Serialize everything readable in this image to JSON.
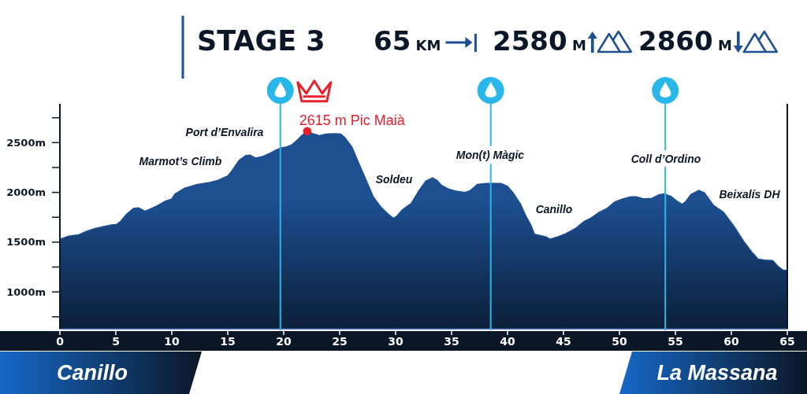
{
  "chart_data": {
    "type": "area",
    "title": "STAGE 3",
    "xlim": [
      0,
      65
    ],
    "xticks": [
      0,
      5,
      10,
      15,
      20,
      25,
      30,
      35,
      40,
      45,
      50,
      55,
      60,
      65
    ],
    "ylim": [
      630,
      2890
    ],
    "yticks": [
      {
        "value": 750,
        "label": null
      },
      {
        "value": 1000,
        "label": "1000m"
      },
      {
        "value": 1250,
        "label": null
      },
      {
        "value": 1500,
        "label": "1500m"
      },
      {
        "value": 1750,
        "label": null
      },
      {
        "value": 2000,
        "label": "2000m"
      },
      {
        "value": 2250,
        "label": null
      },
      {
        "value": 2500,
        "label": "2500m"
      },
      {
        "value": 2750,
        "label": null
      }
    ],
    "series": [
      {
        "color": "#1d4f91",
        "x": [
          0,
          0.8,
          1.7,
          2.4,
          3.1,
          4.0,
          4.7,
          5.0,
          5.4,
          5.9,
          6.6,
          7.0,
          7.3,
          7.6,
          8.2,
          8.7,
          9.4,
          10.0,
          10.3,
          11.1,
          12.3,
          13.4,
          14.1,
          14.5,
          15.0,
          15.3,
          16.0,
          16.6,
          17.0,
          17.3,
          17.5,
          18.1,
          18.8,
          19.3,
          19.7,
          20.2,
          20.7,
          21.2,
          21.6,
          22.1,
          22.6,
          23.2,
          23.8,
          24.5,
          25.1,
          25.5,
          26.1,
          26.7,
          27.3,
          28.0,
          28.7,
          29.3,
          29.8,
          30.1,
          30.6,
          31.4,
          32.1,
          32.7,
          33.3,
          33.7,
          34.1,
          34.8,
          35.5,
          36.2,
          36.7,
          37.3,
          38.1,
          39.4,
          40.0,
          40.5,
          41.2,
          41.6,
          42.1,
          42.4,
          43.0,
          43.5,
          43.8,
          44.4,
          45.2,
          46.1,
          46.8,
          47.5,
          48.2,
          48.9,
          49.6,
          50.3,
          51.0,
          51.5,
          52.2,
          52.9,
          53.5,
          54.0,
          54.6,
          55.1,
          55.6,
          55.9,
          56.4,
          57.1,
          57.6,
          58.4,
          59.3,
          60.2,
          61.1,
          61.8,
          62.4,
          63.0,
          63.7,
          64.2,
          64.6,
          65.0
        ],
        "values": [
          1530,
          1560,
          1575,
          1610,
          1635,
          1660,
          1675,
          1675,
          1705,
          1775,
          1840,
          1845,
          1830,
          1810,
          1840,
          1865,
          1910,
          1935,
          1985,
          2040,
          2080,
          2100,
          2120,
          2140,
          2165,
          2205,
          2320,
          2370,
          2375,
          2355,
          2345,
          2360,
          2395,
          2425,
          2445,
          2455,
          2475,
          2525,
          2570,
          2615,
          2590,
          2570,
          2585,
          2590,
          2585,
          2545,
          2455,
          2295,
          2140,
          1955,
          1850,
          1785,
          1740,
          1760,
          1825,
          1890,
          2020,
          2115,
          2145,
          2120,
          2070,
          2030,
          2010,
          2000,
          2020,
          2080,
          2090,
          2090,
          2060,
          1995,
          1875,
          1770,
          1670,
          1580,
          1565,
          1550,
          1530,
          1550,
          1585,
          1640,
          1705,
          1745,
          1800,
          1840,
          1905,
          1935,
          1955,
          1955,
          1935,
          1940,
          1975,
          1985,
          1960,
          1915,
          1880,
          1905,
          1980,
          2020,
          1995,
          1870,
          1800,
          1665,
          1510,
          1405,
          1330,
          1320,
          1315,
          1255,
          1220,
          1215
        ]
      },
      {
        "type": "scatter",
        "color": "#e8202a",
        "marker": "circle",
        "x": [
          22.1
        ],
        "values": [
          2615
        ]
      }
    ],
    "ref_lines": [
      {
        "axis": "x",
        "value": 19.7,
        "color": "#29b6e8"
      },
      {
        "axis": "x",
        "value": 38.5,
        "color": "#29b6e8"
      },
      {
        "axis": "x",
        "value": 54.1,
        "color": "#29b6e8"
      }
    ],
    "annotations": [
      "65 KM",
      "2580 M",
      "2860 M",
      "Canillo",
      "La Massana",
      "Marmot’s Climb",
      "Port d’Envalira",
      "Soldeu",
      "Mon(t) Màgic",
      "Canillo",
      "Coll d’Ordino",
      "Beixalís DH",
      {
        "text": "2615 m Pic Maià",
        "x": 22.1,
        "y": 2615
      }
    ]
  }
}
